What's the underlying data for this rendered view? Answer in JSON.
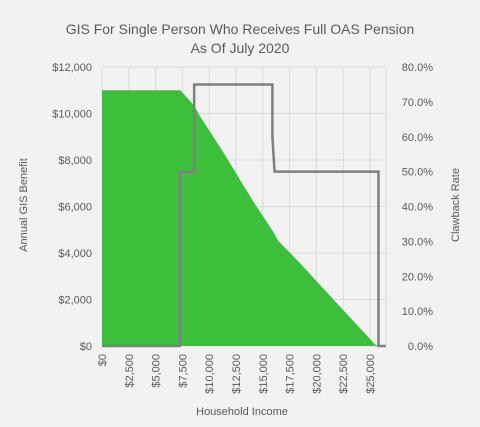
{
  "chart_data": {
    "type": "area",
    "title_line1": "GIS For Single Person Who Receives Full OAS Pension",
    "title_line2": "As Of July 2020",
    "xlabel": "Household Income",
    "ylabel": "Annual GIS Benefit",
    "y2label": "Clawback Rate",
    "xlim": [
      0,
      26500
    ],
    "ylim": [
      0,
      12000
    ],
    "y2lim": [
      0,
      0.8
    ],
    "x_ticks": [
      "$0",
      "$2,500",
      "$5,000",
      "$7,500",
      "$10,000",
      "$12,500",
      "$15,000",
      "$17,500",
      "$20,000",
      "$22,500",
      "$25,000"
    ],
    "y_ticks": [
      "$0",
      "$2,000",
      "$4,000",
      "$6,000",
      "$8,000",
      "$10,000",
      "$12,000"
    ],
    "y2_ticks": [
      "0.0%",
      "10.0%",
      "20.0%",
      "30.0%",
      "40.0%",
      "50.0%",
      "60.0%",
      "70.0%",
      "80.0%"
    ],
    "grid": true,
    "series": [
      {
        "kind": "area",
        "color": "#3cc03c",
        "x": [
          0,
          7300,
          8600,
          9050,
          11500,
          14000,
          16000,
          16400,
          18500,
          21000,
          23000,
          25500,
          26000
        ],
        "values": [
          11000,
          11000,
          10350,
          9950,
          8200,
          6300,
          4900,
          4550,
          3550,
          2300,
          1300,
          60,
          0
        ]
      },
      {
        "kind": "step-line",
        "axis": "right",
        "color": "#7f7f7f",
        "x": [
          0,
          7250,
          7250,
          8600,
          8600,
          15900,
          15900,
          16100,
          16100,
          25800,
          25800,
          26500
        ],
        "values": [
          0,
          0,
          0.5,
          0.5,
          0.75,
          0.75,
          0.6,
          0.5,
          0.5,
          0.5,
          0,
          0
        ]
      }
    ]
  }
}
